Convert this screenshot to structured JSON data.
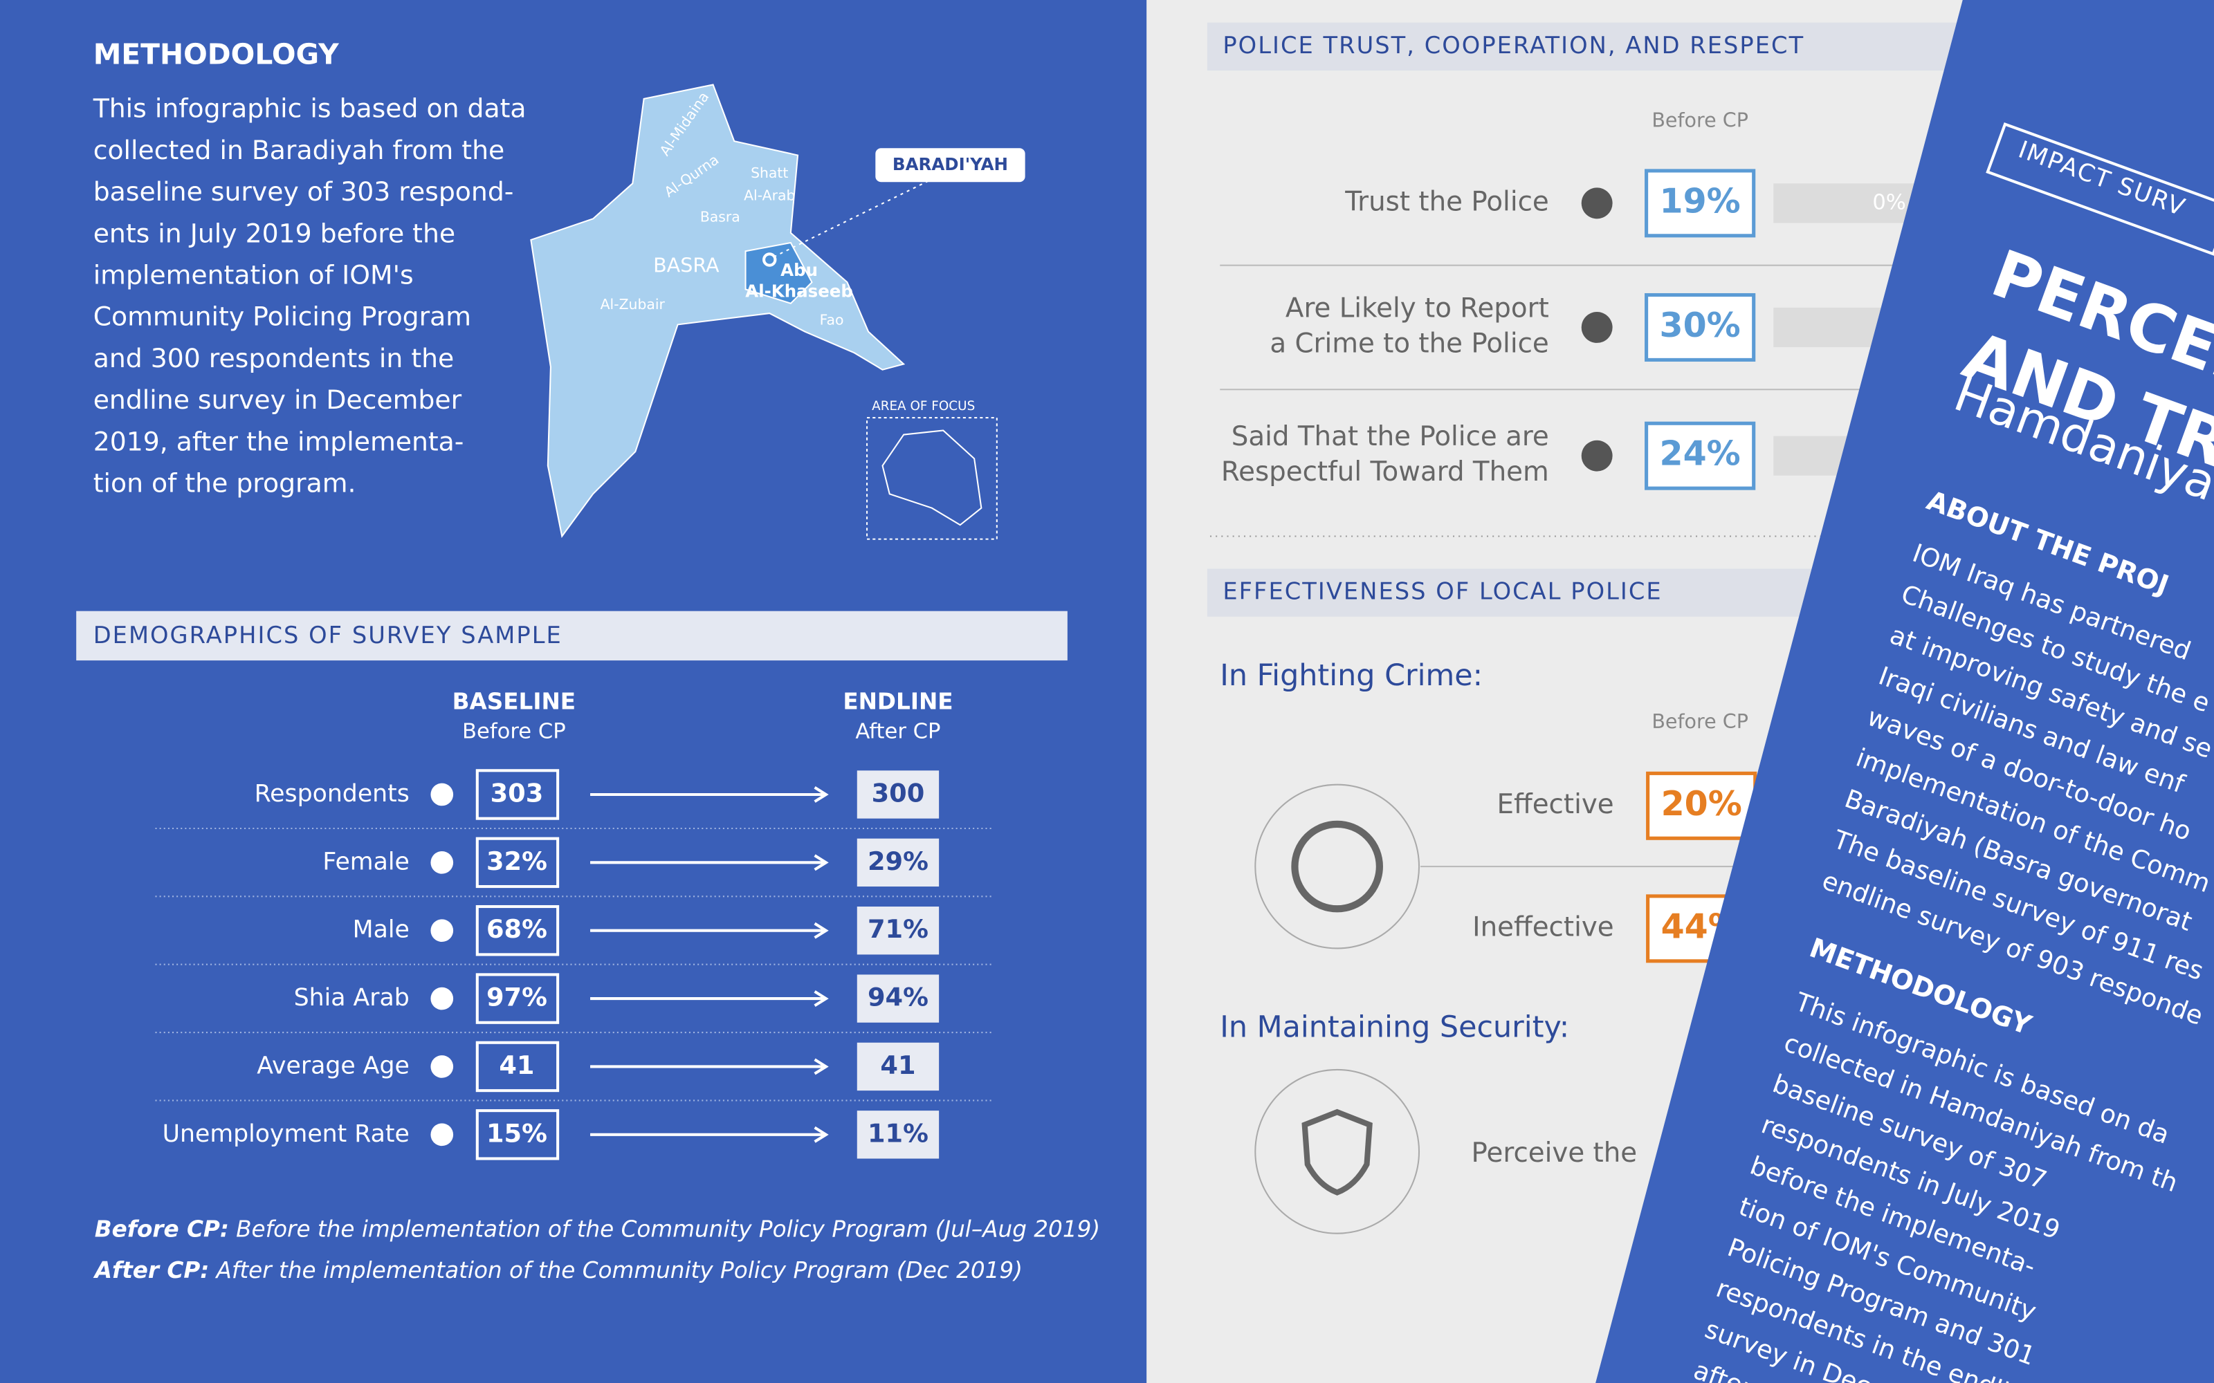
{
  "methodology": {
    "title": "METHODOLOGY",
    "lines": [
      "This infographic is based on data",
      "collected in Baradiyah from the",
      "baseline survey of 303 respond-",
      "ents in July 2019 before the",
      "implementation of IOM's",
      "Community Policing Program",
      "and 300 respondents in the",
      "endline survey in December",
      "2019, after the implementa-",
      "tion of the program."
    ]
  },
  "map": {
    "callout": "BARADI'YAH",
    "governorate": "BASRA",
    "districts": [
      "Al-Midaina",
      "Al-Qurna",
      "Shatt",
      "Al-Arab",
      "Basra",
      "Abu",
      "Al-Khaseeb",
      "Al-Zubair",
      "Fao"
    ],
    "inset_label": "AREA OF FOCUS"
  },
  "demographics": {
    "title": "DEMOGRAPHICS OF SURVEY SAMPLE",
    "baseline_header": "BASELINE",
    "baseline_sub": "Before CP",
    "endline_header": "ENDLINE",
    "endline_sub": "After CP",
    "rows": [
      {
        "label": "Respondents",
        "baseline": "303",
        "endline": "300"
      },
      {
        "label": "Female",
        "baseline": "32%",
        "endline": "29%"
      },
      {
        "label": "Male",
        "baseline": "68%",
        "endline": "71%"
      },
      {
        "label": "Shia Arab",
        "baseline": "97%",
        "endline": "94%"
      },
      {
        "label": "Average Age",
        "baseline": "41",
        "endline": "41"
      },
      {
        "label": "Unemployment Rate",
        "baseline": "15%",
        "endline": "11%"
      }
    ]
  },
  "notes": [
    {
      "term": "Before CP:",
      "text": "Before the implementation of the Community Policy Program (Jul–Aug 2019)"
    },
    {
      "term": "After CP:",
      "text": "After the implementation of the Community Policy Program (Dec 2019)"
    }
  ],
  "trust": {
    "title": "POLICE TRUST, COOPERATION, AND RESPECT",
    "column": "Before CP",
    "rows": [
      {
        "lines": [
          "Trust the Police"
        ],
        "value": "19%"
      },
      {
        "lines": [
          "Are Likely to Report",
          "a Crime to the Police"
        ],
        "value": "30%"
      },
      {
        "lines": [
          "Said That the Police are",
          "Respectful Toward Them"
        ],
        "value": "24%"
      }
    ],
    "cropped_value": "0%"
  },
  "effectiveness": {
    "title": "EFFECTIVENESS OF LOCAL POLICE",
    "crime_heading": "In Fighting Crime:",
    "column": "Before CP",
    "rows": [
      {
        "label": "Effective",
        "value": "20%"
      },
      {
        "label": "Ineffective",
        "value": "44%"
      }
    ],
    "security_heading": "In Maintaining Security:",
    "security_text": "Perceive the"
  },
  "flyer": {
    "tag": "IMPACT SURV",
    "title_lines": [
      "PERCEP",
      "AND TR"
    ],
    "subtitle": "Hamdaniya",
    "about_title": "ABOUT THE PROJ",
    "about_lines": [
      "IOM Iraq has partnered",
      "Challenges to study the e",
      "at improving safety and se",
      "Iraqi civilians and law enf",
      "waves of a door-to-door ho",
      "implementation of the Comm",
      "Baradiyah (Basra governorat",
      "The baseline survey of 911 res",
      "endline survey of 903 responde"
    ],
    "method_title": "METHODOLOGY",
    "method_lines": [
      "This infographic is based on da",
      "collected in Hamdaniyah from th",
      "baseline survey of 307",
      "respondents in July 2019",
      "before the implementa-",
      "tion of IOM's Community",
      "Policing Program and 301",
      "respondents in the endline",
      "survey in Decemb",
      "after th"
    ]
  }
}
